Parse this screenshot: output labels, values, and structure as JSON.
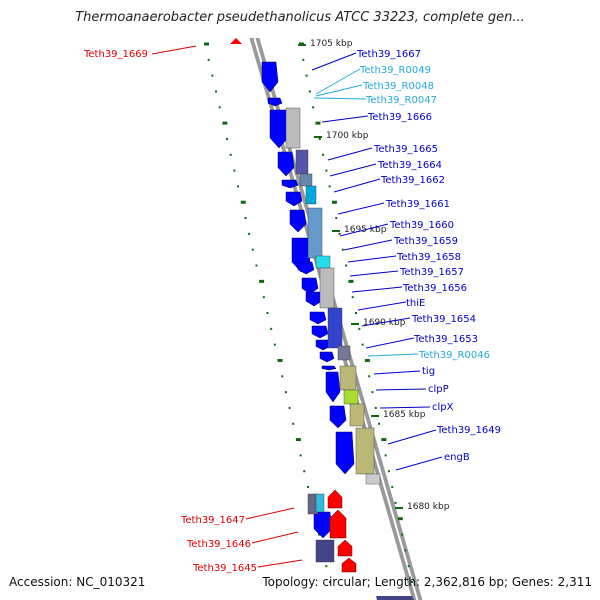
{
  "title": "Thermoanaerobacter pseudethanolicus ATCC 33223, complete gen...",
  "footer": {
    "accession": "Accession: NC_010321",
    "summary": "Topology: circular; Length: 2,362,816 bp; Genes: 2,311"
  },
  "colors": {
    "gene_label": "#0000cc",
    "rna_label": "#22aadd",
    "highlight_label": "#dd0000",
    "forward_feature": "#ff0000",
    "reverse_feature": "#0000ff",
    "backbone": "#999999",
    "ruler_marks": "#116611"
  },
  "scale_labels": [
    {
      "text": "1705 kbp"
    },
    {
      "text": "1700 kbp"
    },
    {
      "text": "1695 kbp"
    },
    {
      "text": "1690 kbp"
    },
    {
      "text": "1685 kbp"
    },
    {
      "text": "1680 kbp"
    }
  ],
  "labels": [
    {
      "text": "Teth39_1669",
      "kind": "highlight"
    },
    {
      "text": "Teth39_1667",
      "kind": "gene"
    },
    {
      "text": "Teth39_R0049",
      "kind": "rna"
    },
    {
      "text": "Teth39_R0048",
      "kind": "rna"
    },
    {
      "text": "Teth39_R0047",
      "kind": "rna"
    },
    {
      "text": "Teth39_1666",
      "kind": "gene"
    },
    {
      "text": "Teth39_1665",
      "kind": "gene"
    },
    {
      "text": "Teth39_1664",
      "kind": "gene"
    },
    {
      "text": "Teth39_1662",
      "kind": "gene"
    },
    {
      "text": "Teth39_1661",
      "kind": "gene"
    },
    {
      "text": "Teth39_1660",
      "kind": "gene"
    },
    {
      "text": "Teth39_1659",
      "kind": "gene"
    },
    {
      "text": "Teth39_1658",
      "kind": "gene"
    },
    {
      "text": "Teth39_1657",
      "kind": "gene"
    },
    {
      "text": "Teth39_1656",
      "kind": "gene"
    },
    {
      "text": "thiE",
      "kind": "gene"
    },
    {
      "text": "Teth39_1654",
      "kind": "gene"
    },
    {
      "text": "Teth39_1653",
      "kind": "gene"
    },
    {
      "text": "Teth39_R0046",
      "kind": "rna"
    },
    {
      "text": "tig",
      "kind": "gene"
    },
    {
      "text": "clpP",
      "kind": "gene"
    },
    {
      "text": "clpX",
      "kind": "gene"
    },
    {
      "text": "Teth39_1649",
      "kind": "gene"
    },
    {
      "text": "engB",
      "kind": "gene"
    },
    {
      "text": "Teth39_1647",
      "kind": "highlight"
    },
    {
      "text": "Teth39_1646",
      "kind": "highlight"
    },
    {
      "text": "Teth39_1645",
      "kind": "highlight"
    }
  ]
}
